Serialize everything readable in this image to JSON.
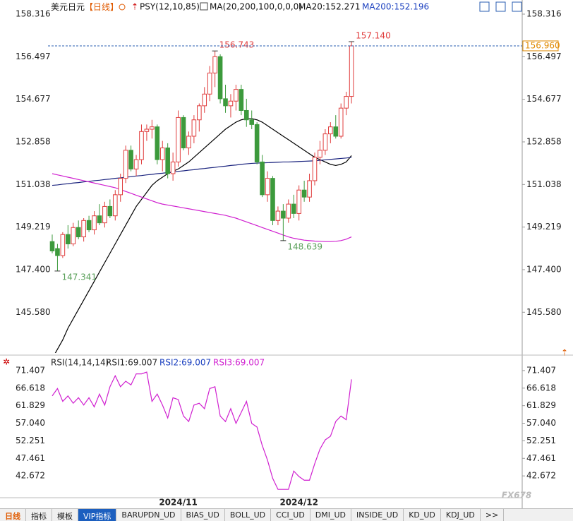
{
  "header": {
    "symbol": "美元日元",
    "period": "【日线】",
    "psy": "PSY(12,10,85)",
    "ma": "MA(20,200,100,0,0,0)",
    "ma20": "MA20:152.271",
    "ma200": "MA200:152.196"
  },
  "chart_data": [
    {
      "type": "candlestick",
      "ylim": [
        143.84,
        158.678
      ],
      "yticks": [
        158.316,
        156.497,
        154.677,
        152.858,
        151.038,
        149.219,
        {
          "value": 147.4,
          "label": "147.400"
        },
        {
          "value": 145.58,
          "label": "145.580"
        }
      ],
      "up_color": "#e03c3c",
      "down_color": "#3c9a3c",
      "ohlc": [
        [
          148.6,
          148.9,
          148.1,
          148.2
        ],
        [
          148.3,
          148.5,
          147.341,
          148.0
        ],
        [
          148.0,
          149.0,
          147.9,
          148.9
        ],
        [
          148.9,
          149.3,
          148.3,
          148.5
        ],
        [
          148.5,
          149.4,
          148.4,
          149.2
        ],
        [
          149.2,
          149.5,
          148.7,
          148.8
        ],
        [
          148.8,
          149.6,
          148.6,
          149.5
        ],
        [
          149.5,
          149.7,
          149.0,
          149.1
        ],
        [
          149.1,
          149.9,
          148.9,
          149.7
        ],
        [
          149.7,
          150.2,
          149.3,
          149.4
        ],
        [
          149.4,
          150.3,
          149.2,
          150.1
        ],
        [
          150.1,
          150.4,
          149.6,
          149.7
        ],
        [
          149.7,
          150.8,
          149.5,
          150.6
        ],
        [
          150.6,
          151.5,
          150.3,
          151.3
        ],
        [
          151.3,
          152.7,
          151.1,
          152.5
        ],
        [
          152.5,
          152.7,
          151.6,
          151.7
        ],
        [
          151.7,
          152.3,
          151.4,
          152.1
        ],
        [
          152.1,
          153.6,
          151.9,
          153.3
        ],
        [
          153.3,
          153.6,
          152.9,
          153.4
        ],
        [
          153.4,
          153.8,
          153.0,
          153.5
        ],
        [
          153.5,
          153.6,
          151.9,
          152.1
        ],
        [
          152.1,
          152.9,
          151.6,
          152.6
        ],
        [
          152.6,
          152.8,
          151.3,
          151.5
        ],
        [
          151.5,
          152.4,
          151.2,
          152.0
        ],
        [
          152.0,
          154.2,
          151.8,
          153.9
        ],
        [
          153.9,
          154.0,
          152.5,
          152.6
        ],
        [
          152.6,
          153.3,
          152.3,
          153.1
        ],
        [
          153.1,
          154.0,
          152.8,
          153.8
        ],
        [
          153.8,
          154.5,
          153.3,
          154.4
        ],
        [
          154.4,
          155.2,
          154.1,
          154.9
        ],
        [
          154.9,
          156.1,
          154.6,
          155.8
        ],
        [
          155.8,
          156.743,
          155.2,
          156.5
        ],
        [
          156.5,
          156.6,
          154.5,
          154.7
        ],
        [
          154.7,
          155.3,
          154.1,
          154.4
        ],
        [
          154.4,
          154.9,
          153.9,
          154.6
        ],
        [
          154.6,
          155.3,
          154.2,
          155.1
        ],
        [
          155.1,
          155.3,
          154.0,
          154.2
        ],
        [
          154.2,
          154.7,
          153.5,
          153.8
        ],
        [
          153.8,
          154.2,
          153.4,
          153.6
        ],
        [
          153.6,
          153.7,
          151.9,
          152.0
        ],
        [
          152.0,
          152.3,
          150.5,
          150.6
        ],
        [
          150.6,
          151.6,
          150.3,
          151.3
        ],
        [
          151.3,
          151.4,
          149.3,
          149.5
        ],
        [
          149.5,
          150.1,
          149.3,
          149.9
        ],
        [
          149.9,
          150.2,
          148.639,
          149.6
        ],
        [
          149.6,
          150.4,
          149.4,
          150.2
        ],
        [
          150.2,
          150.6,
          149.6,
          149.8
        ],
        [
          149.8,
          151.0,
          149.5,
          150.8
        ],
        [
          150.8,
          151.2,
          150.3,
          150.5
        ],
        [
          150.5,
          151.5,
          150.3,
          151.2
        ],
        [
          151.2,
          152.4,
          151.0,
          152.2
        ],
        [
          152.2,
          152.9,
          151.9,
          152.5
        ],
        [
          152.5,
          153.4,
          152.3,
          153.2
        ],
        [
          153.2,
          153.7,
          152.8,
          153.5
        ],
        [
          153.5,
          154.0,
          153.0,
          153.1
        ],
        [
          153.1,
          154.5,
          153.0,
          154.3
        ],
        [
          154.3,
          155.0,
          154.0,
          154.8
        ],
        [
          154.8,
          157.14,
          154.5,
          156.96
        ]
      ],
      "series": [
        {
          "name": "MA20",
          "color": "#000000",
          "values": [
            143.6,
            144.0,
            144.4,
            144.9,
            145.3,
            145.7,
            146.1,
            146.5,
            146.9,
            147.3,
            147.7,
            148.1,
            148.5,
            148.9,
            149.3,
            149.7,
            150.1,
            150.4,
            150.7,
            151.0,
            151.2,
            151.35,
            151.5,
            151.6,
            151.7,
            151.85,
            152.0,
            152.2,
            152.4,
            152.6,
            152.8,
            153.0,
            153.2,
            153.4,
            153.55,
            153.7,
            153.8,
            153.85,
            153.85,
            153.8,
            153.7,
            153.55,
            153.4,
            153.25,
            153.1,
            152.95,
            152.8,
            152.65,
            152.5,
            152.35,
            152.2,
            152.1,
            152.0,
            151.9,
            151.85,
            151.9,
            152.0,
            152.271
          ]
        },
        {
          "name": "MA200",
          "color": "#1a237e",
          "values": [
            151.0,
            151.02,
            151.05,
            151.07,
            151.1,
            151.12,
            151.15,
            151.17,
            151.2,
            151.22,
            151.25,
            151.27,
            151.3,
            151.32,
            151.35,
            151.37,
            151.4,
            151.42,
            151.45,
            151.47,
            151.5,
            151.52,
            151.55,
            151.57,
            151.6,
            151.62,
            151.65,
            151.67,
            151.7,
            151.72,
            151.75,
            151.77,
            151.8,
            151.82,
            151.85,
            151.87,
            151.9,
            151.92,
            151.94,
            151.95,
            151.96,
            151.97,
            151.98,
            151.99,
            152.0,
            152.0,
            152.01,
            152.02,
            152.03,
            152.04,
            152.05,
            152.07,
            152.09,
            152.11,
            152.13,
            152.15,
            152.17,
            152.196
          ]
        },
        {
          "name": "MA100",
          "color": "#d020d0",
          "values": [
            151.5,
            151.45,
            151.4,
            151.35,
            151.3,
            151.25,
            151.2,
            151.15,
            151.1,
            151.05,
            151.0,
            150.95,
            150.9,
            150.82,
            150.74,
            150.66,
            150.58,
            150.5,
            150.42,
            150.34,
            150.26,
            150.2,
            150.16,
            150.12,
            150.08,
            150.04,
            150.0,
            149.96,
            149.92,
            149.88,
            149.84,
            149.8,
            149.76,
            149.72,
            149.66,
            149.6,
            149.52,
            149.44,
            149.36,
            149.28,
            149.2,
            149.12,
            149.04,
            148.96,
            148.88,
            148.8,
            148.74,
            148.7,
            148.66,
            148.64,
            148.62,
            148.61,
            148.6,
            148.6,
            148.61,
            148.64,
            148.7,
            148.8
          ]
        }
      ],
      "annotations": [
        {
          "value": 157.14,
          "label": "157.140",
          "color": "#e03c3c"
        },
        {
          "value": 156.743,
          "label": "156.743",
          "color": "#e03c3c"
        },
        {
          "value": 148.639,
          "label": "148.639",
          "color": "#5aa05a"
        },
        {
          "value": 147.341,
          "label": "147.341",
          "color": "#5aa05a"
        }
      ],
      "last_price": {
        "value": 156.96,
        "label": "156.960"
      },
      "x_labels": [
        "2024/11",
        "2024/12"
      ]
    },
    {
      "type": "line",
      "title": "RSI(14,14,14)",
      "legend": [
        {
          "text": "RSI1:69.007",
          "color": "#222222"
        },
        {
          "text": "RSI2:69.007",
          "color": "#1a3fbf"
        },
        {
          "text": "RSI3:69.007",
          "color": "#d020d0"
        }
      ],
      "ylim": [
        36.73,
        75.24
      ],
      "yticks": [
        71.407,
        66.618,
        61.829,
        {
          "value": 57.04,
          "label": "57.040"
        },
        52.251,
        47.461,
        42.672
      ],
      "series": [
        {
          "name": "RSI",
          "color": "#d020d0",
          "values": [
            64.5,
            66.5,
            63,
            64.5,
            62.5,
            64,
            62,
            64,
            61.5,
            65,
            62,
            67,
            70,
            67,
            68.5,
            67.5,
            70.5,
            70.5,
            71,
            63,
            65,
            62,
            58.5,
            64,
            63.5,
            59,
            57.5,
            62,
            62.5,
            61,
            66.5,
            67,
            59,
            57.5,
            61,
            57,
            60,
            63,
            57,
            56,
            51,
            47,
            42,
            39,
            39,
            39,
            44,
            42.5,
            41.5,
            41.5,
            46,
            50,
            52.5,
            53.5,
            57.5,
            59,
            58,
            69.007
          ]
        }
      ]
    }
  ],
  "tabs": [
    "日线",
    "指标",
    "模板",
    "VIP指标",
    "BARUPDN_UD",
    "BIAS_UD",
    "BOLL_UD",
    "CCI_UD",
    "DMI_UD",
    "INSIDE_UD",
    "KD_UD",
    "KDJ_UD",
    ">>"
  ],
  "watermark": "FX678"
}
